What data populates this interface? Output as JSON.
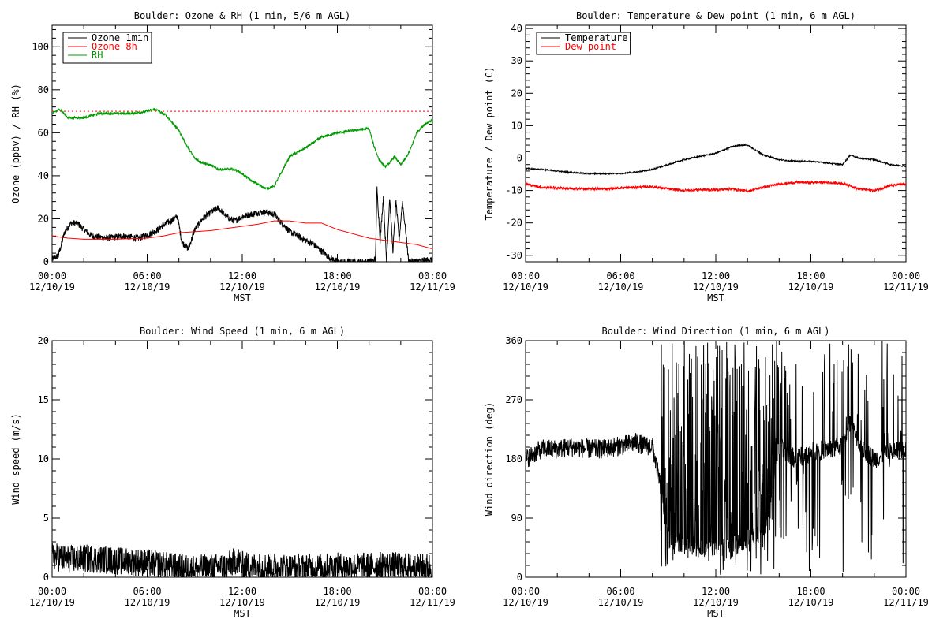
{
  "chart_data": [
    {
      "id": "ozone-rh",
      "type": "line",
      "title": "Boulder: Ozone & RH (1 min, 5/6 m AGL)",
      "xlabel": "MST",
      "ylabel": "Ozone (ppbv) / RH (%)",
      "xlim": [
        0,
        24
      ],
      "ylim": [
        0,
        110
      ],
      "yticks": [
        0,
        20,
        40,
        60,
        80,
        100
      ],
      "xticks": [
        {
          "t": 0,
          "time": "00:00",
          "date": "12/10/19"
        },
        {
          "t": 6,
          "time": "06:00",
          "date": "12/10/19"
        },
        {
          "t": 12,
          "time": "12:00",
          "date": "12/10/19"
        },
        {
          "t": 18,
          "time": "18:00",
          "date": "12/10/19"
        },
        {
          "t": 24,
          "time": "00:00",
          "date": "12/11/19"
        }
      ],
      "legend_position": "top-left",
      "reference_line": {
        "y": 70,
        "color": "#ff0000",
        "style": "dotted"
      },
      "series": [
        {
          "name": "Ozone 1min",
          "color": "#000000",
          "noise": 1.5,
          "points": [
            [
              0,
              1
            ],
            [
              0.4,
              3
            ],
            [
              0.8,
              14
            ],
            [
              1.2,
              18
            ],
            [
              1.6,
              18
            ],
            [
              2.0,
              15
            ],
            [
              2.5,
              12
            ],
            [
              3.5,
              11
            ],
            [
              4.5,
              12
            ],
            [
              5.5,
              11
            ],
            [
              6.5,
              14
            ],
            [
              7.0,
              17
            ],
            [
              7.5,
              19
            ],
            [
              7.9,
              21
            ],
            [
              8.2,
              9
            ],
            [
              8.6,
              6
            ],
            [
              9.0,
              15
            ],
            [
              9.5,
              20
            ],
            [
              10.0,
              23
            ],
            [
              10.5,
              25
            ],
            [
              11.0,
              21
            ],
            [
              11.5,
              19
            ],
            [
              12.0,
              21
            ],
            [
              12.5,
              22
            ],
            [
              13.0,
              23
            ],
            [
              13.5,
              23
            ],
            [
              14.0,
              22
            ],
            [
              14.5,
              18
            ],
            [
              15.0,
              14
            ],
            [
              15.5,
              12
            ],
            [
              16.0,
              10
            ],
            [
              16.5,
              8
            ],
            [
              17.0,
              5
            ],
            [
              17.5,
              2
            ],
            [
              18.0,
              0
            ],
            [
              20.0,
              0
            ],
            [
              20.4,
              1
            ],
            [
              20.5,
              34
            ],
            [
              20.7,
              10
            ],
            [
              20.9,
              30
            ],
            [
              21.1,
              0
            ],
            [
              21.3,
              30
            ],
            [
              21.5,
              5
            ],
            [
              21.7,
              28
            ],
            [
              21.9,
              10
            ],
            [
              22.1,
              28
            ],
            [
              22.3,
              15
            ],
            [
              22.5,
              0
            ],
            [
              24,
              1
            ]
          ]
        },
        {
          "name": "Ozone 8h",
          "color": "#ff0000",
          "noise": 0,
          "points": [
            [
              0,
              12
            ],
            [
              1,
              11
            ],
            [
              2,
              10.5
            ],
            [
              4,
              10.5
            ],
            [
              6,
              11
            ],
            [
              7,
              12
            ],
            [
              8,
              13.5
            ],
            [
              9,
              14
            ],
            [
              10,
              14.5
            ],
            [
              11,
              15.5
            ],
            [
              12,
              16.5
            ],
            [
              13,
              17.5
            ],
            [
              14,
              19
            ],
            [
              15,
              19
            ],
            [
              16,
              18
            ],
            [
              17,
              18
            ],
            [
              18,
              15
            ],
            [
              19,
              13
            ],
            [
              20,
              11
            ],
            [
              21,
              10
            ],
            [
              22,
              9
            ],
            [
              23,
              8
            ],
            [
              24,
              6
            ]
          ]
        },
        {
          "name": "RH",
          "color": "#009900",
          "noise": 0.6,
          "points": [
            [
              0,
              69
            ],
            [
              0.5,
              71
            ],
            [
              1,
              67
            ],
            [
              2,
              67
            ],
            [
              3,
              69
            ],
            [
              4,
              69
            ],
            [
              5,
              69
            ],
            [
              6,
              70
            ],
            [
              6.5,
              71
            ],
            [
              7.2,
              68
            ],
            [
              8,
              61
            ],
            [
              8.5,
              54
            ],
            [
              9,
              48
            ],
            [
              9.5,
              46
            ],
            [
              10,
              45
            ],
            [
              10.5,
              43
            ],
            [
              11,
              43
            ],
            [
              11.5,
              43
            ],
            [
              12,
              41
            ],
            [
              12.5,
              38
            ],
            [
              13,
              36
            ],
            [
              13.5,
              34
            ],
            [
              14,
              35
            ],
            [
              14.5,
              42
            ],
            [
              15,
              49
            ],
            [
              16,
              53
            ],
            [
              17,
              58
            ],
            [
              18,
              60
            ],
            [
              19,
              61
            ],
            [
              20,
              62
            ],
            [
              20.3,
              54
            ],
            [
              20.6,
              48
            ],
            [
              21,
              44
            ],
            [
              21.3,
              46
            ],
            [
              21.6,
              49
            ],
            [
              22,
              45
            ],
            [
              22.3,
              48
            ],
            [
              22.6,
              52
            ],
            [
              23,
              60
            ],
            [
              23.5,
              64
            ],
            [
              24,
              66
            ]
          ]
        }
      ]
    },
    {
      "id": "temp-dew",
      "type": "line",
      "title": "Boulder: Temperature & Dew point (1 min, 6 m AGL)",
      "xlabel": "MST",
      "ylabel": "Temperature / Dew point (C)",
      "xlim": [
        0,
        24
      ],
      "ylim": [
        -32,
        41
      ],
      "yticks": [
        -30,
        -20,
        -10,
        0,
        10,
        20,
        30,
        40
      ],
      "xticks": [
        {
          "t": 0,
          "time": "00:00",
          "date": "12/10/19"
        },
        {
          "t": 6,
          "time": "06:00",
          "date": "12/10/19"
        },
        {
          "t": 12,
          "time": "12:00",
          "date": "12/10/19"
        },
        {
          "t": 18,
          "time": "18:00",
          "date": "12/10/19"
        },
        {
          "t": 24,
          "time": "00:00",
          "date": "12/11/19"
        }
      ],
      "legend_position": "top-left",
      "series": [
        {
          "name": "Temperature",
          "color": "#000000",
          "noise": 0.2,
          "points": [
            [
              0,
              -3.2
            ],
            [
              1,
              -3.5
            ],
            [
              2,
              -4
            ],
            [
              3,
              -4.5
            ],
            [
              4,
              -4.8
            ],
            [
              5,
              -4.8
            ],
            [
              6,
              -4.8
            ],
            [
              7,
              -4.3
            ],
            [
              8,
              -3.5
            ],
            [
              9,
              -2
            ],
            [
              10,
              -0.5
            ],
            [
              11,
              0.5
            ],
            [
              12,
              1.5
            ],
            [
              12.5,
              2.5
            ],
            [
              13,
              3.5
            ],
            [
              13.5,
              4
            ],
            [
              14,
              4
            ],
            [
              14.5,
              2.5
            ],
            [
              15,
              1
            ],
            [
              16,
              -0.5
            ],
            [
              17,
              -1
            ],
            [
              18,
              -1
            ],
            [
              19,
              -1.5
            ],
            [
              20,
              -2
            ],
            [
              20.5,
              1
            ],
            [
              21,
              0
            ],
            [
              22,
              -0.5
            ],
            [
              23,
              -2
            ],
            [
              24,
              -2.5
            ]
          ]
        },
        {
          "name": "Dew point",
          "color": "#ff0000",
          "noise": 0.4,
          "points": [
            [
              0,
              -8
            ],
            [
              1,
              -9
            ],
            [
              2,
              -9.2
            ],
            [
              3,
              -9.5
            ],
            [
              4,
              -9.5
            ],
            [
              5,
              -9.5
            ],
            [
              6,
              -9.2
            ],
            [
              7,
              -9
            ],
            [
              8,
              -8.8
            ],
            [
              9,
              -9.5
            ],
            [
              10,
              -10
            ],
            [
              11,
              -9.7
            ],
            [
              12,
              -9.8
            ],
            [
              13,
              -9.5
            ],
            [
              14,
              -10.2
            ],
            [
              15,
              -9
            ],
            [
              16,
              -8
            ],
            [
              17,
              -7.5
            ],
            [
              18,
              -7.5
            ],
            [
              19,
              -7.5
            ],
            [
              20,
              -7.8
            ],
            [
              20.5,
              -8.5
            ],
            [
              21,
              -9.5
            ],
            [
              22,
              -10
            ],
            [
              23,
              -8.5
            ],
            [
              24,
              -8
            ]
          ]
        }
      ]
    },
    {
      "id": "wind-speed",
      "type": "line",
      "title": "Boulder: Wind Speed (1 min, 6 m AGL)",
      "xlabel": "MST",
      "ylabel": "Wind speed (m/s)",
      "xlim": [
        0,
        24
      ],
      "ylim": [
        0,
        20
      ],
      "yticks": [
        0,
        5,
        10,
        15,
        20
      ],
      "xticks": [
        {
          "t": 0,
          "time": "00:00",
          "date": "12/10/19"
        },
        {
          "t": 6,
          "time": "06:00",
          "date": "12/10/19"
        },
        {
          "t": 12,
          "time": "12:00",
          "date": "12/10/19"
        },
        {
          "t": 18,
          "time": "18:00",
          "date": "12/10/19"
        },
        {
          "t": 24,
          "time": "00:00",
          "date": "12/11/19"
        }
      ],
      "series": [
        {
          "name": "",
          "color": "#000000",
          "noise": 1.2,
          "floor": 0,
          "points": [
            [
              0,
              1.8
            ],
            [
              1,
              1.5
            ],
            [
              2,
              1.6
            ],
            [
              3,
              1.5
            ],
            [
              4,
              1.4
            ],
            [
              5,
              1.3
            ],
            [
              6,
              1.2
            ],
            [
              7,
              1.0
            ],
            [
              8,
              0.8
            ],
            [
              9,
              0.7
            ],
            [
              10,
              0.8
            ],
            [
              11,
              0.9
            ],
            [
              11.7,
              1.5
            ],
            [
              12,
              1.0
            ],
            [
              13,
              0.9
            ],
            [
              14,
              0.9
            ],
            [
              15,
              0.8
            ],
            [
              16,
              0.8
            ],
            [
              17,
              0.8
            ],
            [
              18,
              0.9
            ],
            [
              19,
              0.9
            ],
            [
              20,
              0.9
            ],
            [
              21,
              1.0
            ],
            [
              22,
              0.9
            ],
            [
              23,
              0.8
            ],
            [
              24,
              0.9
            ]
          ]
        }
      ]
    },
    {
      "id": "wind-dir",
      "type": "line",
      "title": "Boulder: Wind Direction (1 min, 6 m AGL)",
      "xlabel": "MST",
      "ylabel": "Wind direction (deg)",
      "xlim": [
        0,
        24
      ],
      "ylim": [
        0,
        360
      ],
      "yticks": [
        0,
        90,
        180,
        270,
        360
      ],
      "xticks": [
        {
          "t": 0,
          "time": "00:00",
          "date": "12/10/19"
        },
        {
          "t": 6,
          "time": "06:00",
          "date": "12/10/19"
        },
        {
          "t": 12,
          "time": "12:00",
          "date": "12/10/19"
        },
        {
          "t": 18,
          "time": "18:00",
          "date": "12/10/19"
        },
        {
          "t": 24,
          "time": "00:00",
          "date": "12/11/19"
        }
      ],
      "series": [
        {
          "name": "",
          "color": "#000000",
          "noise": 15,
          "spikes": [
            [
              8.5,
              16.5,
              0.5
            ],
            [
              16.5,
              24,
              0.18
            ]
          ],
          "floor": 0,
          "ceil": 360,
          "points": [
            [
              0,
              180
            ],
            [
              1,
              195
            ],
            [
              2,
              195
            ],
            [
              3,
              198
            ],
            [
              4,
              195
            ],
            [
              5,
              195
            ],
            [
              6,
              200
            ],
            [
              7,
              205
            ],
            [
              7.5,
              200
            ],
            [
              8,
              200
            ],
            [
              8.5,
              140
            ],
            [
              9,
              60
            ],
            [
              10,
              50
            ],
            [
              11,
              45
            ],
            [
              12,
              40
            ],
            [
              13,
              45
            ],
            [
              14,
              60
            ],
            [
              15,
              60
            ],
            [
              16,
              200
            ],
            [
              17,
              180
            ],
            [
              18,
              190
            ],
            [
              19,
              195
            ],
            [
              20,
              200
            ],
            [
              20.5,
              240
            ],
            [
              21,
              200
            ],
            [
              22,
              180
            ],
            [
              23,
              190
            ],
            [
              24,
              195
            ]
          ]
        }
      ]
    }
  ]
}
